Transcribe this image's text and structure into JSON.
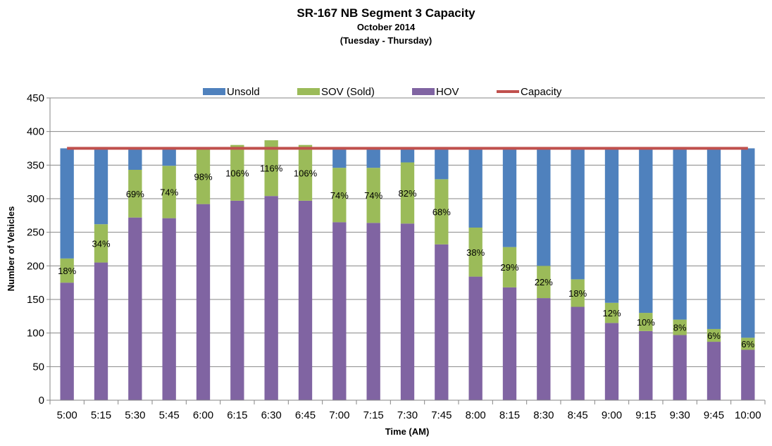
{
  "chart_data": {
    "type": "bar",
    "stacked": true,
    "title": "SR-167 NB Segment 3 Capacity",
    "subtitle_lines": [
      "October 2014",
      "(Tuesday - Thursday)"
    ],
    "xlabel": "Time (AM)",
    "ylabel": "Number of Vehicles",
    "ylim": [
      0,
      450
    ],
    "yticks": [
      0,
      50,
      100,
      150,
      200,
      250,
      300,
      350,
      400,
      450
    ],
    "grid": true,
    "legend_position": "top",
    "categories": [
      "5:00",
      "5:15",
      "5:30",
      "5:45",
      "6:00",
      "6:15",
      "6:30",
      "6:45",
      "7:00",
      "7:15",
      "7:30",
      "7:45",
      "8:00",
      "8:15",
      "8:30",
      "8:45",
      "9:00",
      "9:15",
      "9:30",
      "9:45",
      "10:00"
    ],
    "series": [
      {
        "name": "HOV",
        "color": "#8064A2",
        "values": [
          175,
          205,
          272,
          271,
          292,
          297,
          304,
          297,
          265,
          264,
          263,
          232,
          184,
          168,
          152,
          139,
          115,
          103,
          97,
          87,
          75
        ]
      },
      {
        "name": "SOV (Sold)",
        "color": "#9BBB59",
        "values": [
          36,
          57,
          71,
          78,
          82,
          83,
          83,
          83,
          81,
          82,
          91,
          97,
          73,
          60,
          48,
          41,
          30,
          27,
          23,
          19,
          18
        ]
      },
      {
        "name": "Unsold",
        "color": "#4F81BD",
        "values": [
          164,
          113,
          32,
          26,
          1,
          0,
          0,
          0,
          29,
          29,
          21,
          46,
          118,
          147,
          175,
          195,
          230,
          245,
          255,
          269,
          282
        ]
      }
    ],
    "bar_labels": [
      "18%",
      "34%",
      "69%",
      "74%",
      "98%",
      "106%",
      "116%",
      "106%",
      "74%",
      "74%",
      "82%",
      "68%",
      "38%",
      "29%",
      "22%",
      "18%",
      "12%",
      "10%",
      "8%",
      "6%",
      "6%"
    ],
    "legend_order": [
      "Unsold",
      "SOV (Sold)",
      "HOV",
      "Capacity"
    ],
    "capacity_line": {
      "name": "Capacity",
      "color": "#C0504D",
      "value": 375
    }
  }
}
